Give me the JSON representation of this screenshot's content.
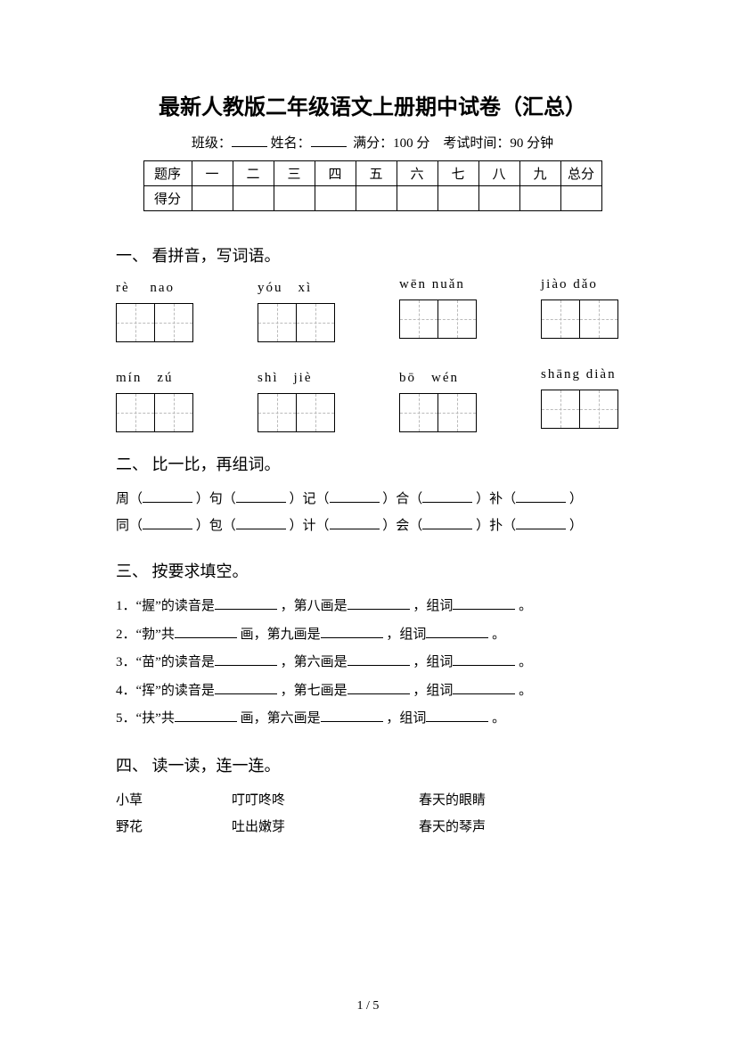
{
  "title": "最新人教版二年级语文上册期中试卷（汇总）",
  "meta": {
    "class_label": "班级：",
    "name_label": "姓名：",
    "full_label": "满分：",
    "full_value": "100 分",
    "time_label": "考试时间：",
    "time_value": "90 分钟"
  },
  "score_table": {
    "row_header": "题序",
    "score_header": "得分",
    "cols": [
      "一",
      "二",
      "三",
      "四",
      "五",
      "六",
      "七",
      "八",
      "九",
      "总分"
    ]
  },
  "sections": {
    "s1": "一、 看拼音，写词语。",
    "s2": "二、 比一比，再组词。",
    "s3": "三、 按要求填空。",
    "s4": "四、 读一读，连一连。"
  },
  "pinyin": {
    "row1": [
      {
        "label": "rè　  nao"
      },
      {
        "label": "yóu　xì"
      },
      {
        "label": "wēn nuǎn"
      },
      {
        "label": "jiào dǎo"
      }
    ],
    "row2": [
      {
        "label": "mín　zú"
      },
      {
        "label": "shì　jiè"
      },
      {
        "label": "bō　wén"
      },
      {
        "label": "shāng diàn"
      }
    ]
  },
  "q2": {
    "line1": {
      "c1": "周（",
      "c2": "）句（",
      "c3": "）记（",
      "c4": "）合（",
      "c5": "）补（",
      "c6": "）"
    },
    "line2": {
      "c1": "同（",
      "c2": "）包（",
      "c3": "）计（",
      "c4": "）会（",
      "c5": "）扑（",
      "c6": "）"
    }
  },
  "q3": {
    "l1": {
      "pre": "1．“握”的读音是",
      "m1": "，第八画是",
      "m2": "，组词",
      "end": "。"
    },
    "l2": {
      "pre": "2．“勃”共",
      "m1": "画，第九画是",
      "m2": "，组词",
      "end": "。"
    },
    "l3": {
      "pre": "3．“苗”的读音是",
      "m1": "，第六画是",
      "m2": "，组词",
      "end": "。"
    },
    "l4": {
      "pre": "4．“挥”的读音是",
      "m1": "，第七画是",
      "m2": "，组词",
      "end": "。"
    },
    "l5": {
      "pre": "5．“扶”共",
      "m1": "画，第六画是",
      "m2": "，组词",
      "end": "。"
    }
  },
  "q4": {
    "rows": [
      {
        "a": "小草",
        "b": "叮叮咚咚",
        "c": "春天的眼睛"
      },
      {
        "a": "野花",
        "b": "吐出嫩芽",
        "c": "春天的琴声"
      }
    ]
  },
  "page": "1 / 5"
}
